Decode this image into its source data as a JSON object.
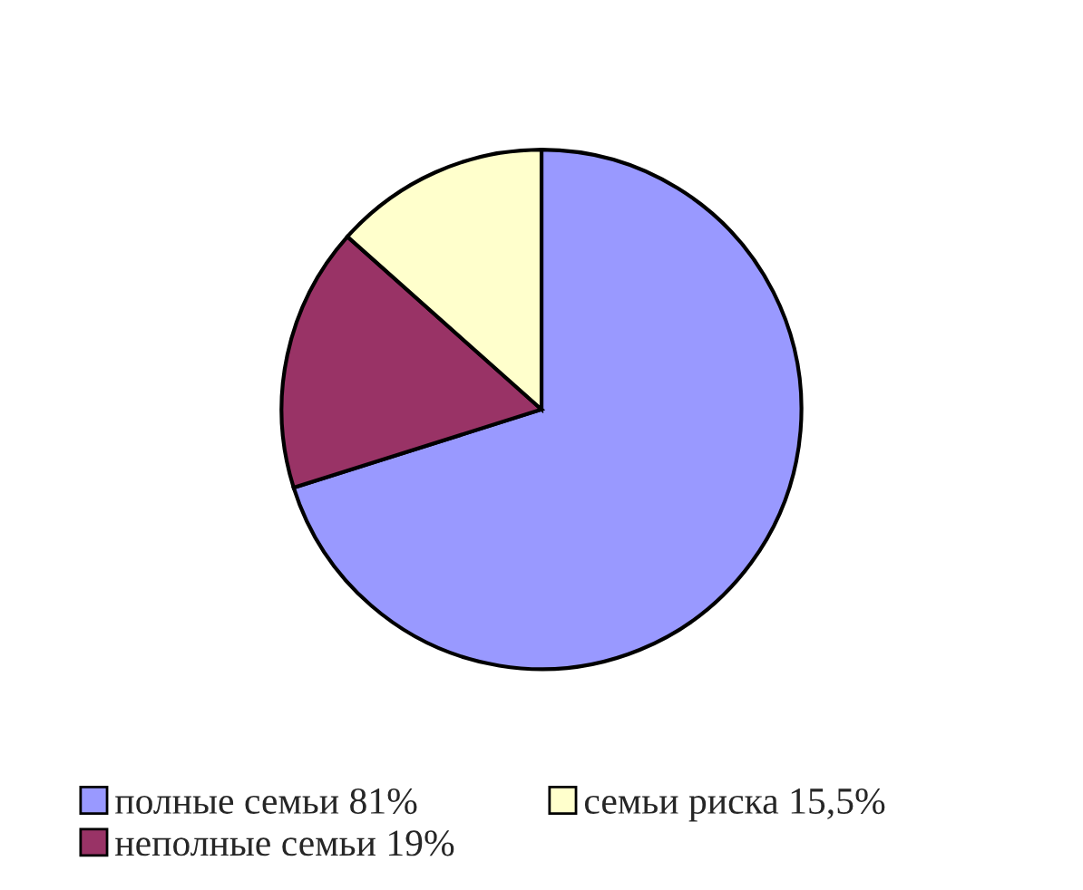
{
  "chart_data": {
    "type": "pie",
    "categories": [
      "полные семьи",
      "неполные семьи",
      "семьи риска"
    ],
    "values": [
      81,
      19,
      15.5
    ],
    "value_labels": [
      "81%",
      "19%",
      "15,5%"
    ],
    "colors": [
      "#9999ff",
      "#993366",
      "#ffffcc"
    ],
    "legend": "bottom"
  }
}
